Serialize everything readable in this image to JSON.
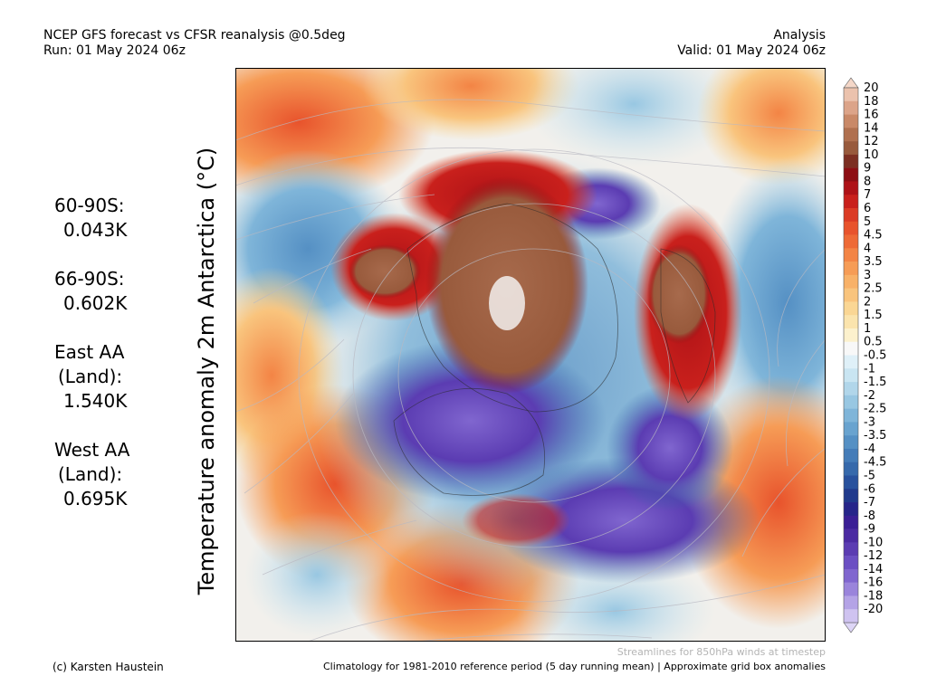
{
  "header": {
    "title": "NCEP GFS forecast vs CFSR reanalysis @0.5deg",
    "run": "Run: 01 May 2024 06z",
    "mode": "Analysis",
    "valid": "Valid: 01 May 2024 06z"
  },
  "ylabel": "Temperature anomaly 2m Antarctica (°C)",
  "stats": [
    {
      "lines": [
        "60-90S:"
      ],
      "value": "0.043K"
    },
    {
      "lines": [
        "66-90S:"
      ],
      "value": "0.602K"
    },
    {
      "lines": [
        "East AA",
        "(Land):"
      ],
      "value": "1.540K"
    },
    {
      "lines": [
        "West AA",
        "(Land):"
      ],
      "value": "0.695K"
    }
  ],
  "colorbar": {
    "labels": [
      "20",
      "18",
      "16",
      "14",
      "12",
      "10",
      "9",
      "8",
      "7",
      "6",
      "5",
      "4.5",
      "4",
      "3.5",
      "3",
      "2.5",
      "2",
      "1.5",
      "1",
      "0.5",
      "-0.5",
      "-1",
      "-1.5",
      "-2",
      "-2.5",
      "-3",
      "-3.5",
      "-4",
      "-4.5",
      "-5",
      "-6",
      "-7",
      "-8",
      "-9",
      "-10",
      "-12",
      "-14",
      "-16",
      "-18",
      "-20"
    ],
    "colors": [
      "#ebc2ad",
      "#dca489",
      "#c98968",
      "#b0704f",
      "#985a3c",
      "#7c2f22",
      "#8d0e13",
      "#ae1217",
      "#c9201c",
      "#db3b25",
      "#e8532c",
      "#ee6a36",
      "#f38445",
      "#f69c56",
      "#f8b168",
      "#f9c47d",
      "#fad694",
      "#fbe4ad",
      "#fcf1cd",
      "#f8f8f8",
      "#dff0f8",
      "#c9e5f2",
      "#b1d6ea",
      "#98c7e2",
      "#7fb5d9",
      "#69a3cf",
      "#5590c4",
      "#447cb8",
      "#3669ab",
      "#28519d",
      "#203a8c",
      "#26258a",
      "#3a1f95",
      "#4b2ba2",
      "#5b3cb2",
      "#6b4fc3",
      "#8066cf",
      "#9a84db",
      "#b4a3e6",
      "#cfc3f0"
    ],
    "arrow_top_color": "#f4d7c8",
    "arrow_bottom_color": "#ddd5f6"
  },
  "footer": {
    "streamlines_note": "Streamlines for 850hPa winds at timestep",
    "credit": "(c) Karsten Haustein",
    "climatology": "Climatology for 1981-2010 reference period (5 day running mean) | Approximate grid box anomalies"
  }
}
